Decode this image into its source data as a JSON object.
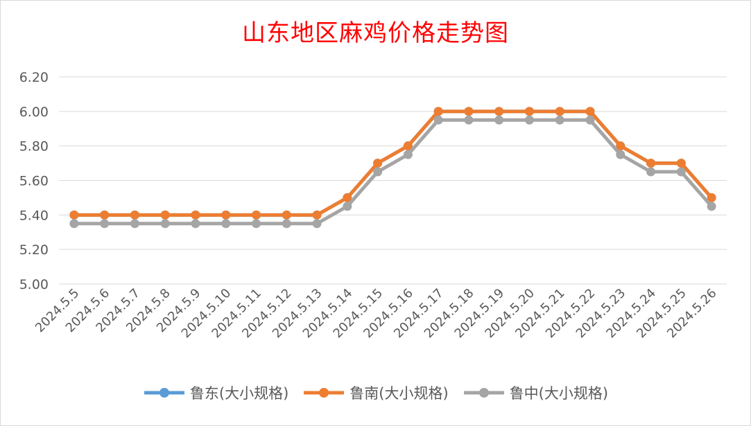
{
  "chart_data": {
    "type": "line",
    "title": "山东地区麻鸡价格走势图",
    "categories": [
      "2024.5.5",
      "2024.5.6",
      "2024.5.7",
      "2024.5.8",
      "2024.5.9",
      "2024.5.10",
      "2024.5.11",
      "2024.5.12",
      "2024.5.13",
      "2024.5.14",
      "2024.5.15",
      "2024.5.16",
      "2024.5.17",
      "2024.5.18",
      "2024.5.19",
      "2024.5.20",
      "2024.5.21",
      "2024.5.22",
      "2024.5.23",
      "2024.5.24",
      "2024.5.25",
      "2024.5.26"
    ],
    "ylim": [
      5.0,
      6.2
    ],
    "yticks": [
      5.0,
      5.2,
      5.4,
      5.6,
      5.8,
      6.0,
      6.2
    ],
    "grid": true,
    "legend_position": "bottom",
    "series": [
      {
        "name": "鲁东(大小规格)",
        "color": "#5b9bd5",
        "values": [
          5.4,
          5.4,
          5.4,
          5.4,
          5.4,
          5.4,
          5.4,
          5.4,
          5.4,
          5.5,
          5.7,
          5.8,
          6.0,
          6.0,
          6.0,
          6.0,
          6.0,
          6.0,
          5.8,
          5.7,
          5.7,
          5.5
        ]
      },
      {
        "name": "鲁南(大小规格)",
        "color": "#ed7d31",
        "values": [
          5.4,
          5.4,
          5.4,
          5.4,
          5.4,
          5.4,
          5.4,
          5.4,
          5.4,
          5.5,
          5.7,
          5.8,
          6.0,
          6.0,
          6.0,
          6.0,
          6.0,
          6.0,
          5.8,
          5.7,
          5.7,
          5.5
        ]
      },
      {
        "name": "鲁中(大小规格)",
        "color": "#a5a5a5",
        "values": [
          5.35,
          5.35,
          5.35,
          5.35,
          5.35,
          5.35,
          5.35,
          5.35,
          5.35,
          5.45,
          5.65,
          5.75,
          5.95,
          5.95,
          5.95,
          5.95,
          5.95,
          5.95,
          5.75,
          5.65,
          5.65,
          5.45
        ]
      }
    ]
  }
}
